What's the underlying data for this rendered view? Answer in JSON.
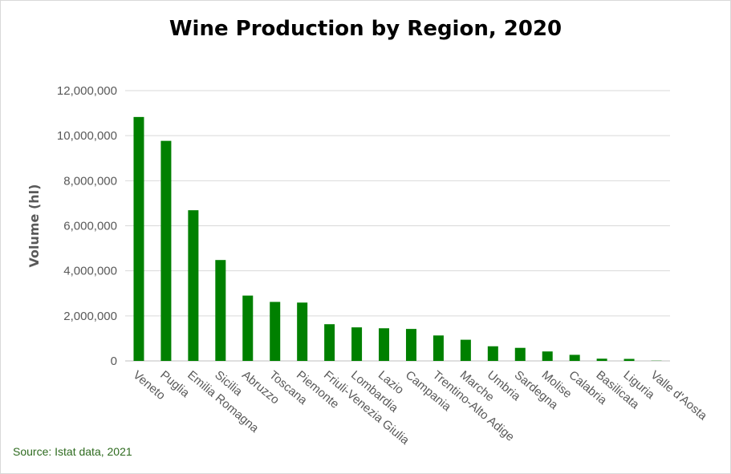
{
  "chart_data": {
    "type": "bar",
    "title": "Wine Production by Region, 2020",
    "xlabel": "",
    "ylabel": "Volume (hl)",
    "ylim": [
      0,
      12000000
    ],
    "yticks": [
      0,
      2000000,
      4000000,
      6000000,
      8000000,
      10000000,
      12000000
    ],
    "ytick_labels": [
      "0",
      "2,000,000",
      "4,000,000",
      "6,000,000",
      "8,000,000",
      "10,000,000",
      "12,000,000"
    ],
    "grid": true,
    "bar_color": "#008000",
    "categories": [
      "Veneto",
      "Puglia",
      "Emilia Romagna",
      "Sicilia",
      "Abruzzo",
      "Toscana",
      "Piemonte",
      "Friuli-Venezia Giulia",
      "Lombardia",
      "Lazio",
      "Campania",
      "Trentino-Alto Adige",
      "Marche",
      "Umbria",
      "Sardegna",
      "Molise",
      "Calabria",
      "Basilicata",
      "Liguria",
      "Valle d'Aosta"
    ],
    "values": [
      10830000,
      9770000,
      6690000,
      4480000,
      2900000,
      2620000,
      2590000,
      1630000,
      1490000,
      1450000,
      1420000,
      1130000,
      940000,
      650000,
      580000,
      420000,
      270000,
      100000,
      90000,
      10000
    ]
  },
  "source": "Source: Istat data, 2021"
}
